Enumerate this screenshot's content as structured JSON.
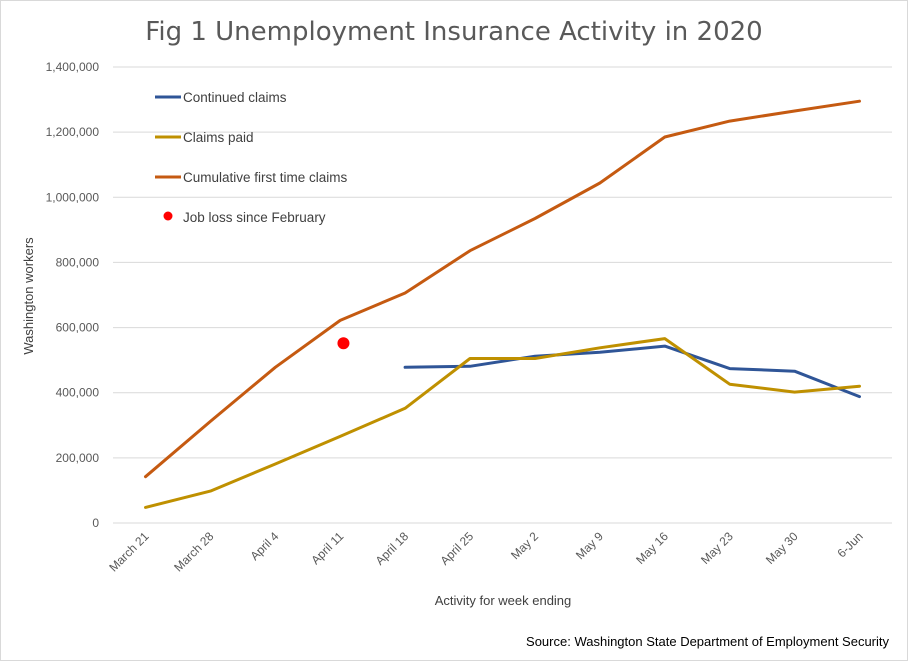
{
  "chart_data": {
    "type": "line",
    "title": "Fig 1 Unemployment Insurance Activity in 2020",
    "xlabel": "Activity for week ending",
    "ylabel": "Washington workers",
    "source": "Source: Washington State Department of Employment Security",
    "categories": [
      "March 21",
      "March 28",
      "April 4",
      "April 11",
      "April 18",
      "April 25",
      "May 2",
      "May 9",
      "May 16",
      "May 23",
      "May 30",
      "6-Jun"
    ],
    "ylim": [
      0,
      1400000
    ],
    "yticks": [
      0,
      200000,
      400000,
      600000,
      800000,
      1000000,
      1200000,
      1400000
    ],
    "ytick_labels": [
      "0",
      "200,000",
      "400,000",
      "600,000",
      "800,000",
      "1,000,000",
      "1,200,000",
      "1,400,000"
    ],
    "grid": true,
    "legend_position": "top-left",
    "series": [
      {
        "name": "Continued claims",
        "color": "#2f5597",
        "values": [
          null,
          null,
          null,
          null,
          478000,
          481000,
          512000,
          524000,
          543000,
          474000,
          466000,
          388000
        ]
      },
      {
        "name": "Claims paid",
        "color": "#bf9000",
        "values": [
          48000,
          98000,
          181000,
          266000,
          352000,
          505000,
          505000,
          538000,
          566000,
          426000,
          402000,
          420000
        ]
      },
      {
        "name": "Cumulative first time claims",
        "color": "#c55a11",
        "values": [
          142000,
          312000,
          478000,
          622000,
          706000,
          836000,
          935000,
          1044000,
          1185000,
          1234000,
          1265000,
          1295000
        ]
      }
    ],
    "points": [
      {
        "name": "Job loss since February",
        "color": "#ff0000",
        "x_index": 3.05,
        "value": 552000
      }
    ]
  }
}
